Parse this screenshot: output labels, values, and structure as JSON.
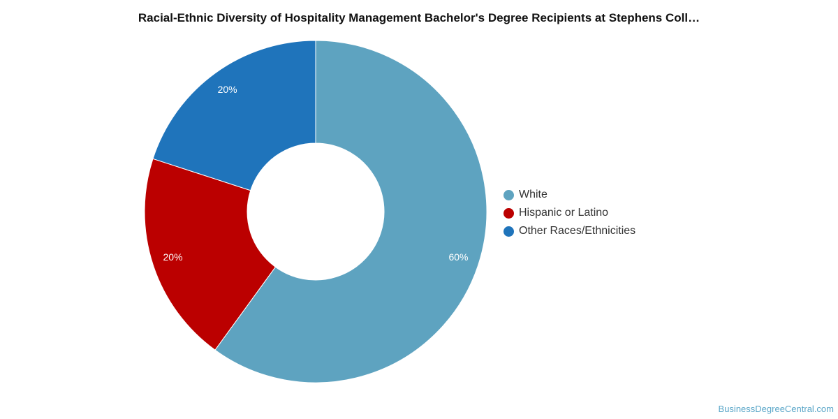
{
  "chart_data": {
    "type": "pie",
    "title": "Racial-Ethnic Diversity of Hospitality Management Bachelor's Degree Recipients at Stephens Coll…",
    "categories": [
      "White",
      "Hispanic or Latino",
      "Other Races/Ethnicities"
    ],
    "values": [
      60,
      20,
      20
    ],
    "labels": [
      "60%",
      "20%",
      "20%"
    ],
    "colors": [
      "#5ea3c0",
      "#bb0000",
      "#1f74bb"
    ],
    "donut": true,
    "legend_position": "right"
  },
  "watermark": "BusinessDegreeCentral.com"
}
